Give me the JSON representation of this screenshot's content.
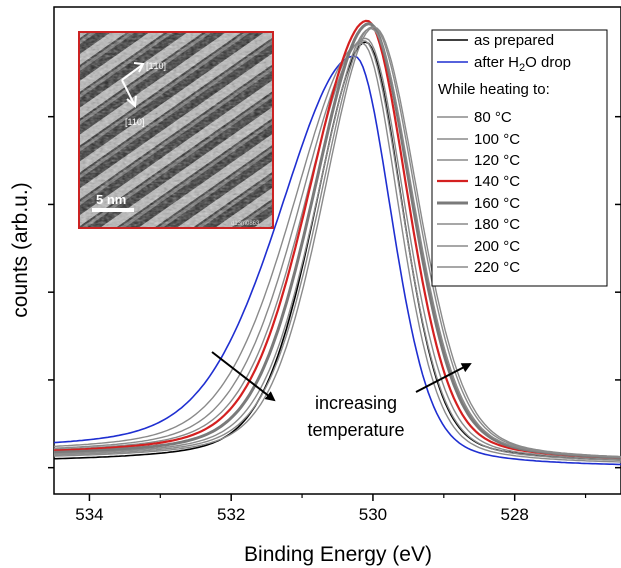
{
  "chart_data": {
    "type": "line",
    "xlabel": "Binding Energy (eV)",
    "ylabel": "counts (arb.u.)",
    "xlim": [
      534.5,
      526.5
    ],
    "x_reversed": true,
    "ylim": [
      -0.06,
      1.05
    ],
    "x_ticks": [
      534,
      532,
      530,
      528
    ],
    "y_ticks_unlabeled": 5,
    "grid": false,
    "legend_position": "top-right",
    "legend_subheading": "While heating to:",
    "annotation": [
      "increasing",
      "temperature"
    ],
    "series": [
      {
        "name": "as prepared",
        "label_pre": "as prepared",
        "label_sub": "",
        "label_post": "",
        "color": "#000000",
        "width": 1.6,
        "peak": 530.1,
        "height": 0.96,
        "wl": 0.85,
        "wr": 0.62,
        "baseline_hi": 0.01,
        "baseline_lo": 0.01,
        "dip": 0.0
      },
      {
        "name": "after H2O drop",
        "label_pre": "after H",
        "label_sub": "2",
        "label_post": "O drop",
        "color": "#1f2fd1",
        "width": 1.6,
        "peak": 530.25,
        "height": 0.92,
        "wl": 1.25,
        "wr": 0.62,
        "baseline_hi": 0.035,
        "baseline_lo": 0.0,
        "dip": 0.0
      },
      {
        "name": "80 °C",
        "label_pre": "  80 °C",
        "label_sub": "",
        "label_post": "",
        "color": "#8a8a8a",
        "width": 1.4,
        "peak": 530.15,
        "height": 0.95,
        "wl": 1.15,
        "wr": 0.62,
        "baseline_hi": 0.03,
        "baseline_lo": 0.005,
        "dip": 0.0
      },
      {
        "name": "100 °C",
        "label_pre": "100 °C",
        "label_sub": "",
        "label_post": "",
        "color": "#8a8a8a",
        "width": 1.4,
        "peak": 530.12,
        "height": 0.955,
        "wl": 1.08,
        "wr": 0.64,
        "baseline_hi": 0.028,
        "baseline_lo": 0.008,
        "dip": 0.0
      },
      {
        "name": "120 °C",
        "label_pre": "120 °C",
        "label_sub": "",
        "label_post": "",
        "color": "#8a8a8a",
        "width": 1.4,
        "peak": 530.1,
        "height": 0.96,
        "wl": 1.02,
        "wr": 0.66,
        "baseline_hi": 0.027,
        "baseline_lo": 0.01,
        "dip": 0.0
      },
      {
        "name": "140 °C",
        "label_pre": "140 °C",
        "label_sub": "",
        "label_post": "",
        "color": "#d42020",
        "width": 2.2,
        "peak": 530.08,
        "height": 1.0,
        "wl": 0.98,
        "wr": 0.68,
        "baseline_hi": 0.025,
        "baseline_lo": 0.012,
        "dip": 0.0
      },
      {
        "name": "160 °C",
        "label_pre": "160 °C",
        "label_sub": "",
        "label_post": "",
        "color": "#7a7a7a",
        "width": 3.0,
        "peak": 530.05,
        "height": 0.995,
        "wl": 0.94,
        "wr": 0.71,
        "baseline_hi": 0.022,
        "baseline_lo": 0.012,
        "dip": 0.0
      },
      {
        "name": "180 °C",
        "label_pre": "180 °C",
        "label_sub": "",
        "label_post": "",
        "color": "#8a8a8a",
        "width": 1.4,
        "peak": 530.03,
        "height": 0.985,
        "wl": 0.9,
        "wr": 0.72,
        "baseline_hi": 0.02,
        "baseline_lo": 0.012,
        "dip": 0.0
      },
      {
        "name": "200 °C",
        "label_pre": "200 °C",
        "label_sub": "",
        "label_post": "",
        "color": "#8a8a8a",
        "width": 1.4,
        "peak": 530.0,
        "height": 0.99,
        "wl": 0.88,
        "wr": 0.73,
        "baseline_hi": 0.018,
        "baseline_lo": 0.012,
        "dip": 0.0
      },
      {
        "name": "220 °C",
        "label_pre": "220 °C",
        "label_sub": "",
        "label_post": "",
        "color": "#8a8a8a",
        "width": 1.4,
        "peak": 529.98,
        "height": 0.99,
        "wl": 0.86,
        "wr": 0.74,
        "baseline_hi": 0.016,
        "baseline_lo": 0.012,
        "dip": 0.0
      }
    ]
  },
  "inset": {
    "direction_1": "[1̄10]",
    "direction_2": "[110]",
    "scale_bar": "5 nm",
    "image_id": "d13m0863",
    "border_color": "#cc2222"
  }
}
